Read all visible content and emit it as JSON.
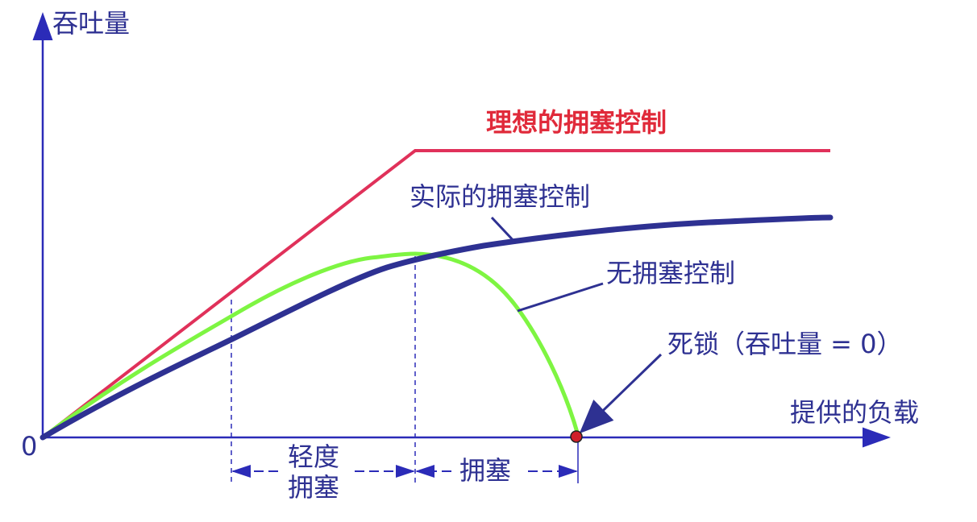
{
  "axes": {
    "y_label": "吞吐量",
    "x_label": "提供的负载",
    "origin": "0"
  },
  "curves": {
    "ideal": "理想的拥塞控制",
    "actual": "实际的拥塞控制",
    "none": "无拥塞控制"
  },
  "deadlock": "死锁（吞吐量 = 0）",
  "regions": {
    "light_line1": "轻度",
    "light_line2": "拥塞",
    "congestion": "拥塞"
  },
  "colors": {
    "axis": "#2b2bb8",
    "ideal": "#e0315a",
    "actual": "#2e3192",
    "none": "#7ef542",
    "ideal_label": "#e02a3a",
    "label": "#2e3192",
    "deadlock_dot": "#d0202a"
  }
}
